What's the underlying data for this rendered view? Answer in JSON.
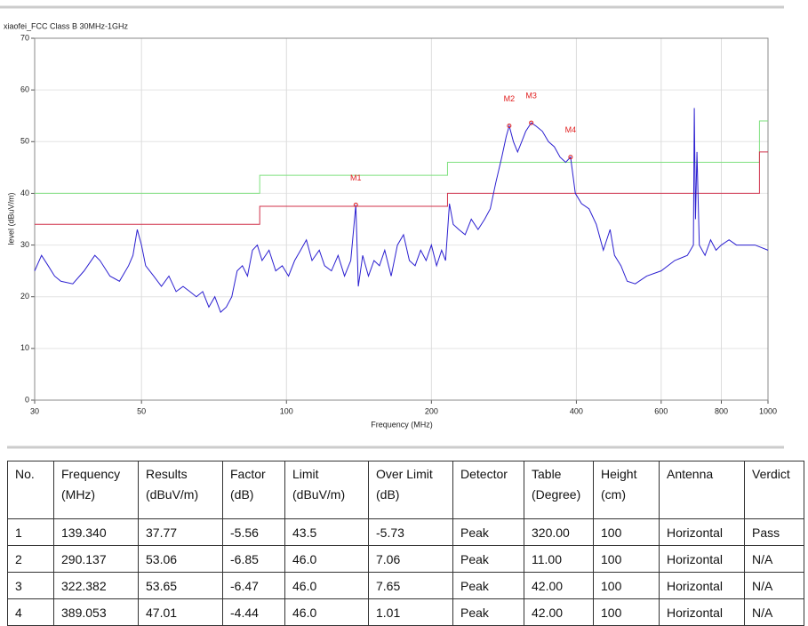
{
  "chart_data": {
    "type": "line",
    "title": "xiaofei_FCC Class B 30MHz-1GHz",
    "x_label": "Frequency (MHz)",
    "y_label": "level (dBuV/m)",
    "xscale": "log",
    "xlim": [
      30,
      1000
    ],
    "xticks": [
      30,
      50,
      100,
      200,
      400,
      600,
      800,
      1000
    ],
    "ylim": [
      0,
      70
    ],
    "yticks": [
      0,
      10,
      20,
      30,
      40,
      50,
      60,
      70
    ],
    "grid": true,
    "series": [
      {
        "color": "#2b1fd0",
        "x": [
          30,
          31,
          32,
          33,
          34,
          36,
          38,
          40,
          41,
          43,
          45,
          47,
          48,
          49,
          50,
          51,
          53,
          55,
          57,
          59,
          61,
          63,
          65,
          67,
          69,
          71,
          73,
          75,
          77,
          79,
          81,
          83,
          85,
          87,
          89,
          92,
          95,
          98,
          101,
          104,
          107,
          110,
          113,
          117,
          120,
          124,
          128,
          132,
          136,
          139.34,
          141,
          144,
          148,
          152,
          156,
          160,
          165,
          170,
          175,
          180,
          185,
          190,
          195,
          200,
          205,
          210,
          214,
          218,
          222,
          228,
          235,
          242,
          250,
          258,
          265,
          272,
          280,
          286,
          290.137,
          296,
          302,
          308,
          314,
          322.382,
          330,
          340,
          350,
          360,
          370,
          380,
          389.053,
          398,
          410,
          425,
          440,
          455,
          470,
          480,
          495,
          510,
          530,
          560,
          600,
          640,
          680,
          700,
          703,
          707,
          712,
          720,
          740,
          760,
          780,
          800,
          830,
          860,
          900,
          940,
          1000
        ],
        "values": [
          25,
          28,
          26,
          24,
          23,
          22.5,
          25,
          28,
          27,
          24,
          23,
          26,
          28,
          33,
          30,
          26,
          24,
          22,
          24,
          21,
          22,
          21,
          20,
          21,
          18,
          20,
          17,
          18,
          20,
          25,
          26,
          24,
          29,
          30,
          27,
          29,
          25,
          26,
          24,
          27,
          29,
          31,
          27,
          29,
          26,
          25,
          28,
          24,
          27,
          37.77,
          22,
          28,
          24,
          27,
          26,
          29,
          24,
          30,
          32,
          27,
          26,
          29,
          27,
          30,
          26,
          29,
          27,
          38,
          34,
          33,
          32,
          35,
          33,
          35,
          37,
          42,
          47,
          51,
          53.06,
          50,
          48,
          50,
          52,
          53.65,
          53,
          52,
          50,
          49,
          47,
          46,
          47.01,
          40,
          38,
          37,
          34,
          29,
          33,
          28,
          26,
          23,
          22.5,
          24,
          25,
          27,
          28,
          30,
          56.5,
          35,
          48,
          30,
          28,
          31,
          29,
          30,
          31,
          30,
          30,
          30,
          29
        ]
      },
      {
        "color": "#7ee07e",
        "x": [
          30,
          88,
          88,
          216,
          216,
          960,
          960,
          1000
        ],
        "values": [
          40,
          40,
          43.5,
          43.5,
          46,
          46,
          54,
          54
        ]
      },
      {
        "color": "#d0304a",
        "x": [
          30,
          88,
          88,
          216,
          216,
          960,
          960,
          1000
        ],
        "values": [
          34,
          34,
          37.5,
          37.5,
          40,
          40,
          48,
          48
        ]
      }
    ],
    "annotations": [
      {
        "label": "M1",
        "x": 139.34,
        "y": 37.77
      },
      {
        "label": "M2",
        "x": 290.137,
        "y": 53.06
      },
      {
        "label": "M3",
        "x": 322.382,
        "y": 53.65
      },
      {
        "label": "M4",
        "x": 389.053,
        "y": 47.01
      }
    ],
    "marker_color": "#e02020"
  },
  "table": {
    "header": [
      [
        "No."
      ],
      [
        "Frequency",
        "(MHz)"
      ],
      [
        "Results",
        "(dBuV/m)"
      ],
      [
        "Factor",
        "(dB)"
      ],
      [
        "Limit",
        "(dBuV/m)"
      ],
      [
        "Over Limit",
        "(dB)"
      ],
      [
        "Detector"
      ],
      [
        "Table",
        "(Degree)"
      ],
      [
        "Height",
        "(cm)"
      ],
      [
        "Antenna"
      ],
      [
        "Verdict"
      ]
    ],
    "rows": [
      [
        "1",
        "139.340",
        "37.77",
        "-5.56",
        "43.5",
        "-5.73",
        "Peak",
        "320.00",
        "100",
        "Horizontal",
        "Pass"
      ],
      [
        "2",
        "290.137",
        "53.06",
        "-6.85",
        "46.0",
        "7.06",
        "Peak",
        "11.00",
        "100",
        "Horizontal",
        "N/A"
      ],
      [
        "3",
        "322.382",
        "53.65",
        "-6.47",
        "46.0",
        "7.65",
        "Peak",
        "42.00",
        "100",
        "Horizontal",
        "N/A"
      ],
      [
        "4",
        "389.053",
        "47.01",
        "-4.44",
        "46.0",
        "1.01",
        "Peak",
        "42.00",
        "100",
        "Horizontal",
        "N/A"
      ]
    ]
  }
}
